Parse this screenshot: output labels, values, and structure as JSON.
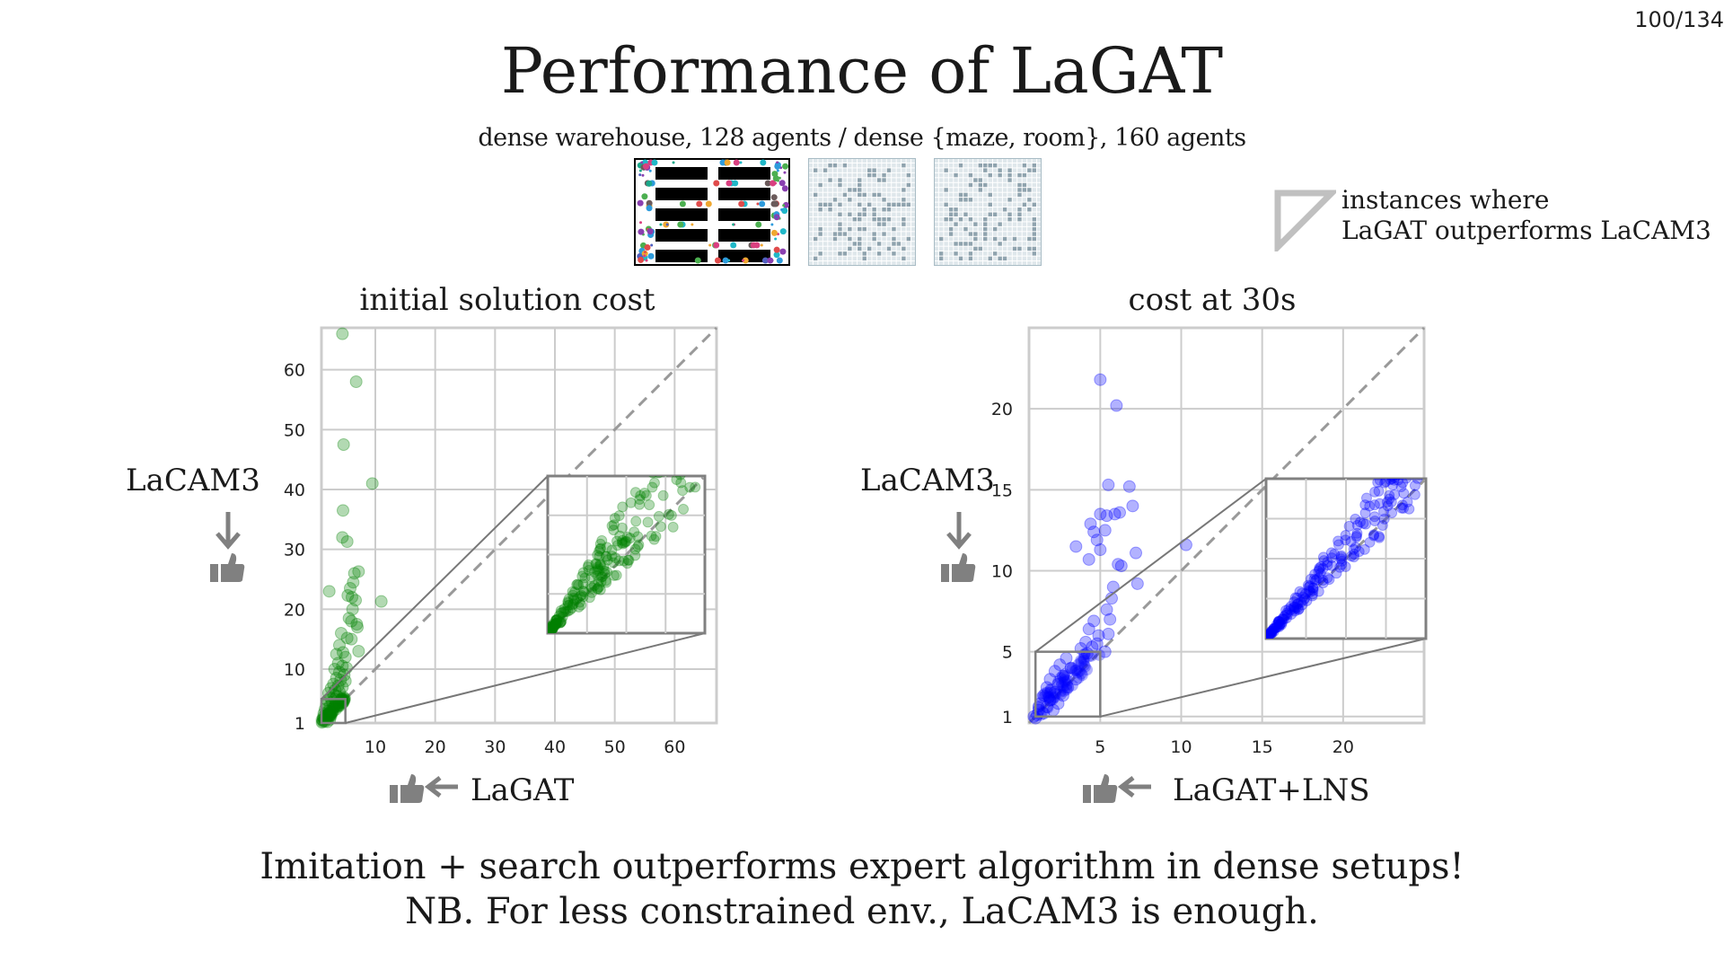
{
  "page": {
    "current": "100",
    "total": "/134"
  },
  "title": "Performance of LaGAT",
  "subtitle": "dense warehouse, 128 agents / dense {maze, room}, 160 agents",
  "maps": [
    {
      "name": "warehouse",
      "kind": "warehouse-map"
    },
    {
      "name": "maze",
      "kind": "maze-map"
    },
    {
      "name": "room",
      "kind": "room-map"
    }
  ],
  "legend": {
    "icon": "triangle-outline-icon",
    "line1": "instances where",
    "line2": "LaGAT outperforms LaCAM3",
    "color": "#c0c0c0"
  },
  "conclusion": {
    "line1": "Imitation + search outperforms expert algorithm in dense setups!",
    "line2": "NB. For less constrained env., LaCAM3 is enough."
  },
  "icons": {
    "thumbs_up": "thumbs-up-icon",
    "arrow_down": "arrow-down-icon",
    "arrow_left": "arrow-left-icon",
    "icon_color": "#808080"
  },
  "chart_data": [
    {
      "type": "scatter",
      "title": "initial solution cost",
      "xlabel": "LaGAT",
      "ylabel": "LaCAM3",
      "xlim": [
        1,
        67
      ],
      "ylim": [
        1,
        67
      ],
      "xticks": [
        10,
        20,
        30,
        40,
        50,
        60
      ],
      "yticks": [
        1,
        10,
        20,
        30,
        40,
        50,
        60
      ],
      "grid": true,
      "diagonal": "y=x dashed",
      "color": "#008000",
      "inset": {
        "xlim": [
          1,
          5
        ],
        "ylim": [
          1,
          5
        ],
        "placement": "lower-right"
      },
      "points": [
        [
          4.5,
          66
        ],
        [
          6.8,
          58
        ],
        [
          4.7,
          47.5
        ],
        [
          9.5,
          41
        ],
        [
          4.6,
          36.5
        ],
        [
          4.5,
          32
        ],
        [
          5.3,
          31.3
        ],
        [
          2.3,
          23
        ],
        [
          11,
          21.3
        ],
        [
          6.5,
          26
        ],
        [
          7.2,
          26.3
        ],
        [
          6.3,
          24.5
        ],
        [
          5.8,
          23.5
        ],
        [
          5.4,
          22.3
        ],
        [
          6.1,
          22
        ],
        [
          6.7,
          21.5
        ],
        [
          6.2,
          20
        ],
        [
          5.6,
          18.5
        ],
        [
          6,
          18
        ],
        [
          6.9,
          17.5
        ],
        [
          7,
          17
        ],
        [
          4.3,
          16
        ],
        [
          5.3,
          15.2
        ],
        [
          6,
          15
        ],
        [
          7.2,
          13
        ],
        [
          4,
          14
        ],
        [
          3.5,
          12.5
        ],
        [
          4.6,
          12.8
        ],
        [
          5,
          12
        ],
        [
          3.8,
          11
        ],
        [
          4.5,
          10.5
        ],
        [
          5.2,
          10.2
        ],
        [
          3.2,
          10
        ],
        [
          4,
          9.5
        ],
        [
          4.8,
          9
        ],
        [
          3.5,
          8.5
        ],
        [
          4.2,
          8.2
        ],
        [
          5,
          8
        ],
        [
          3,
          7.5
        ],
        [
          3.8,
          7.2
        ],
        [
          4.5,
          7
        ],
        [
          2.6,
          6.8
        ],
        [
          3.3,
          6.5
        ],
        [
          4,
          6.2
        ],
        [
          2.2,
          6
        ],
        [
          3,
          5.8
        ],
        [
          3.6,
          5.5
        ],
        [
          2.5,
          5.2
        ],
        [
          3.2,
          5
        ],
        [
          2,
          4.8
        ],
        [
          2.8,
          4.5
        ],
        [
          3.4,
          4.2
        ],
        [
          1.8,
          4
        ],
        [
          2.4,
          3.8
        ],
        [
          3,
          3.5
        ],
        [
          1.6,
          3.3
        ],
        [
          2.2,
          3
        ],
        [
          2.8,
          2.8
        ],
        [
          1.4,
          2.6
        ],
        [
          2,
          2.4
        ],
        [
          2.6,
          2.2
        ],
        [
          1.3,
          2
        ],
        [
          1.8,
          1.8
        ],
        [
          2.4,
          1.6
        ],
        [
          1.2,
          1.5
        ],
        [
          1.6,
          1.3
        ],
        [
          2,
          1.2
        ],
        [
          1.1,
          1.1
        ]
      ]
    },
    {
      "type": "scatter",
      "title": "cost at 30s",
      "xlabel": "LaGAT+LNS",
      "ylabel": "LaCAM3",
      "xlim": [
        0.6,
        25
      ],
      "ylim": [
        0.6,
        25
      ],
      "xticks": [
        5,
        10,
        15,
        20
      ],
      "yticks": [
        1,
        5,
        10,
        15,
        20
      ],
      "grid": true,
      "diagonal": "y=x dashed",
      "color": "#0000ff",
      "inset": {
        "xlim": [
          1,
          5
        ],
        "ylim": [
          1,
          5
        ],
        "placement": "lower-right"
      },
      "points": [
        [
          5,
          21.8
        ],
        [
          6,
          20.2
        ],
        [
          5.5,
          15.3
        ],
        [
          6.8,
          15.2
        ],
        [
          7,
          14
        ],
        [
          5,
          13.5
        ],
        [
          5.4,
          13.4
        ],
        [
          5.9,
          13.5
        ],
        [
          6.2,
          13.6
        ],
        [
          4.4,
          12.9
        ],
        [
          4.6,
          12.4
        ],
        [
          5.3,
          12.5
        ],
        [
          4.8,
          11.9
        ],
        [
          3.5,
          11.5
        ],
        [
          5,
          11.3
        ],
        [
          7.2,
          11.1
        ],
        [
          10.3,
          11.6
        ],
        [
          4.3,
          10.7
        ],
        [
          6.1,
          10.4
        ],
        [
          6.3,
          10.3
        ],
        [
          7.3,
          9.2
        ],
        [
          5.8,
          9
        ],
        [
          5.7,
          8.3
        ],
        [
          5.4,
          7.6
        ],
        [
          5.6,
          7
        ],
        [
          4.6,
          6.9
        ],
        [
          4.3,
          6.4
        ],
        [
          4.9,
          6
        ],
        [
          5.5,
          6.1
        ],
        [
          4.1,
          5.6
        ],
        [
          4.5,
          5.3
        ],
        [
          4.8,
          5.5
        ],
        [
          3.8,
          5.2
        ],
        [
          4.2,
          4.9
        ],
        [
          5.3,
          5
        ],
        [
          2.9,
          4.6
        ],
        [
          2.5,
          4.2
        ],
        [
          3.2,
          4
        ],
        [
          2.2,
          3.8
        ],
        [
          2.7,
          3.5
        ],
        [
          3.5,
          3.3
        ],
        [
          1.9,
          3.3
        ],
        [
          2.4,
          3
        ],
        [
          3,
          2.8
        ],
        [
          1.7,
          2.8
        ],
        [
          2.2,
          2.5
        ],
        [
          2.7,
          2.3
        ],
        [
          1.5,
          2.3
        ],
        [
          1.9,
          2
        ],
        [
          2.4,
          1.8
        ],
        [
          1.3,
          1.8
        ],
        [
          1.7,
          1.6
        ],
        [
          2.1,
          1.4
        ],
        [
          1.2,
          1.4
        ],
        [
          1.5,
          1.2
        ],
        [
          1.1,
          1.1
        ],
        [
          0.9,
          1
        ],
        [
          1,
          0.9
        ]
      ]
    }
  ]
}
